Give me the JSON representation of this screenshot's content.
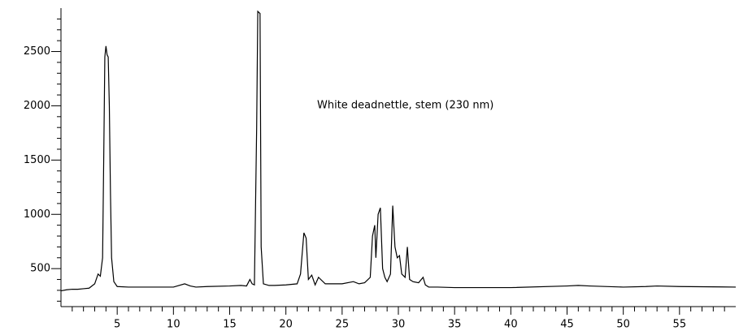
{
  "chart_data": {
    "type": "line",
    "annotation": "White deadnettle, stem (230 nm)",
    "xlim": [
      0,
      60
    ],
    "ylim": [
      150,
      2900
    ],
    "xticks": [
      5,
      10,
      15,
      20,
      25,
      30,
      35,
      40,
      45,
      50,
      55
    ],
    "yticks": [
      500,
      1000,
      1500,
      2000,
      2500
    ],
    "x_minor_ticks": [
      1,
      2,
      3,
      4,
      6,
      7,
      8,
      9,
      11,
      12,
      13,
      14,
      16,
      17,
      18,
      19,
      21,
      22,
      23,
      24,
      26,
      27,
      28,
      29,
      31,
      32,
      33,
      34,
      36,
      37,
      38,
      39,
      41,
      42,
      43,
      44,
      46,
      47,
      48,
      49,
      51,
      52,
      53,
      54,
      56,
      57,
      58,
      59
    ],
    "y_minor_ticks": [
      200,
      300,
      400,
      600,
      700,
      800,
      900,
      1100,
      1200,
      1300,
      1400,
      1600,
      1700,
      1800,
      1900,
      2100,
      2200,
      2300,
      2400,
      2600,
      2700,
      2800
    ],
    "color": "#000000",
    "x": [
      0,
      0.5,
      1,
      1.5,
      2,
      2.5,
      3,
      3.3,
      3.5,
      3.7,
      3.8,
      3.9,
      4.0,
      4.1,
      4.2,
      4.3,
      4.4,
      4.5,
      4.7,
      5,
      6,
      8,
      10,
      11,
      11.5,
      12,
      13,
      15,
      16,
      16.5,
      16.8,
      17.0,
      17.2,
      17.4,
      17.5,
      17.7,
      17.8,
      18,
      18.5,
      19,
      20,
      21,
      21.3,
      21.6,
      21.8,
      22,
      22.3,
      22.6,
      22.9,
      23.5,
      25,
      26,
      26.5,
      27,
      27.5,
      27.7,
      27.9,
      28.0,
      28.2,
      28.4,
      28.6,
      28.8,
      29.0,
      29.3,
      29.5,
      29.7,
      29.9,
      30.1,
      30.3,
      30.6,
      30.8,
      31.0,
      31.3,
      31.8,
      32.2,
      32.4,
      32.7,
      33.5,
      35,
      40,
      45,
      46,
      47,
      50,
      52,
      53,
      55,
      60
    ],
    "values": [
      295,
      305,
      310,
      310,
      315,
      320,
      360,
      450,
      430,
      600,
      1500,
      2450,
      2550,
      2470,
      2450,
      2000,
      1200,
      600,
      380,
      335,
      330,
      330,
      330,
      360,
      340,
      330,
      335,
      340,
      345,
      340,
      400,
      360,
      350,
      1800,
      2870,
      2850,
      700,
      360,
      345,
      345,
      350,
      360,
      450,
      830,
      780,
      400,
      440,
      350,
      420,
      360,
      360,
      380,
      360,
      370,
      420,
      800,
      900,
      600,
      1000,
      1060,
      500,
      420,
      380,
      450,
      1080,
      700,
      600,
      620,
      450,
      420,
      700,
      400,
      380,
      370,
      420,
      350,
      330,
      330,
      325,
      325,
      340,
      345,
      340,
      330,
      335,
      340,
      335,
      330
    ]
  }
}
